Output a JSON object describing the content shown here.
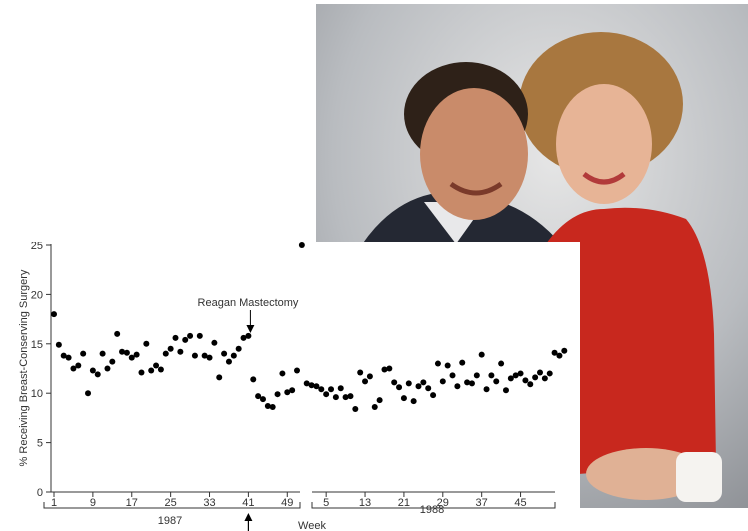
{
  "chart_data": {
    "type": "scatter",
    "ylabel": "% Receiving Breast-Conserving Surgery",
    "xlabel": "Week",
    "ylim": [
      0,
      25
    ],
    "yticks": [
      "0",
      "5",
      "10",
      "15",
      "20",
      "25"
    ],
    "xtick_labels": [
      "1",
      "9",
      "17",
      "25",
      "33",
      "41",
      "49",
      "5",
      "13",
      "21",
      "29",
      "37",
      "45"
    ],
    "years": [
      "1987",
      "1988"
    ],
    "annotation": {
      "text": "Reagan Mastectomy",
      "week_index": 41
    },
    "series": [
      {
        "values": [
          18.0,
          14.9,
          13.8,
          13.6,
          12.5,
          12.8,
          14.0,
          10.0,
          12.3,
          11.9,
          14.0,
          12.5,
          13.2,
          16.0,
          14.2,
          14.1,
          13.6,
          13.9,
          12.1,
          15.0,
          12.3,
          12.8,
          12.4,
          14.0,
          14.5,
          15.6,
          14.2,
          15.4,
          15.8,
          13.8,
          15.8,
          13.8,
          13.6,
          15.1,
          11.6,
          14.0,
          13.2,
          13.8,
          14.5,
          15.6,
          15.8,
          11.4,
          9.7,
          9.4,
          8.7,
          8.6,
          9.9,
          12.0,
          10.1,
          10.3,
          12.3,
          25.0,
          11.0,
          10.8,
          10.7,
          10.4,
          9.9,
          10.4,
          9.6,
          10.5,
          9.6,
          9.7,
          8.4,
          12.1,
          11.2,
          11.7,
          8.6,
          9.3,
          12.4,
          12.5,
          11.1,
          10.6,
          9.5,
          11.0,
          9.2,
          10.7,
          11.1,
          10.5,
          9.8,
          13.0,
          11.2,
          12.8,
          11.8,
          10.7,
          13.1,
          11.1,
          11.0,
          11.8,
          13.9,
          10.4,
          11.8,
          11.2,
          13.0,
          10.3,
          11.5,
          11.8,
          12.0,
          11.3,
          10.9,
          11.6,
          12.1,
          11.5,
          12.0,
          14.1,
          13.8,
          14.3
        ]
      }
    ]
  }
}
